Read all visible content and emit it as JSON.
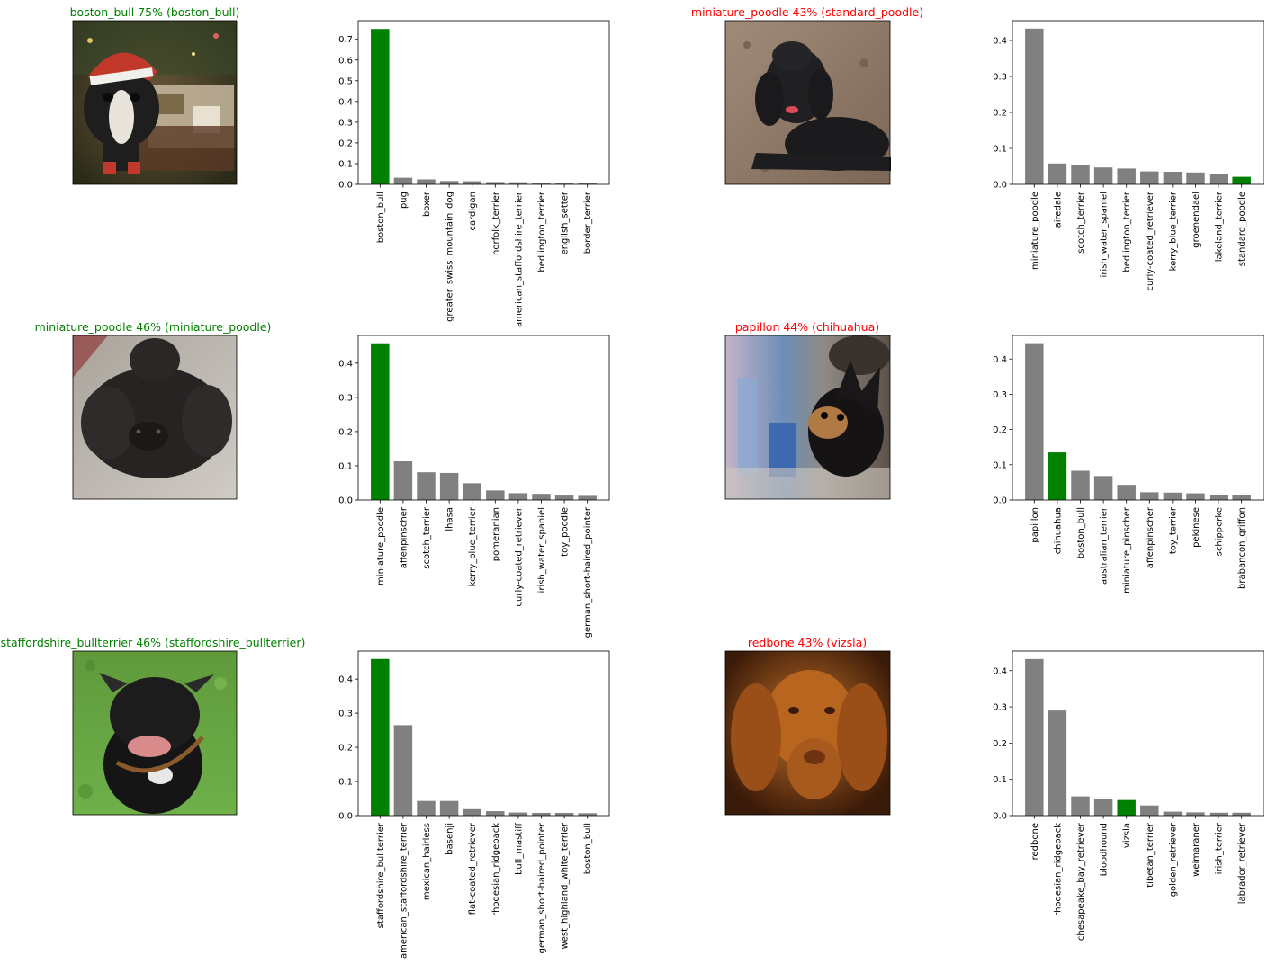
{
  "colors": {
    "correct": "#008000",
    "wrong": "#ff0000",
    "bar_default": "#808080",
    "bar_true": "#008000",
    "axis": "#000000"
  },
  "panels": [
    {
      "title": "boston_bull 75% (boston_bull)",
      "title_color": "correct",
      "image": "boston-terrier-in-santa-hat-photo",
      "chart_data": {
        "type": "bar",
        "categories": [
          "boston_bull",
          "pug",
          "boxer",
          "greater_swiss_mountain_dog",
          "cardigan",
          "norfolk_terrier",
          "american_staffordshire_terrier",
          "bedlington_terrier",
          "english_setter",
          "border_terrier"
        ],
        "values": [
          0.75,
          0.032,
          0.024,
          0.016,
          0.015,
          0.011,
          0.01,
          0.008,
          0.008,
          0.007
        ],
        "highlight_index": 0,
        "yticks": [
          0.0,
          0.1,
          0.2,
          0.3,
          0.4,
          0.5,
          0.6,
          0.7
        ],
        "ylim": [
          0,
          0.79
        ],
        "grid": false
      }
    },
    {
      "title": "miniature_poodle 43% (standard_poodle)",
      "title_color": "wrong",
      "image": "black-poodle-lying-on-ground-photo",
      "chart_data": {
        "type": "bar",
        "categories": [
          "miniature_poodle",
          "airedale",
          "scotch_terrier",
          "irish_water_spaniel",
          "bedlington_terrier",
          "curly-coated_retriever",
          "kerry_blue_terrier",
          "groenendael",
          "lakeland_terrier",
          "standard_poodle"
        ],
        "values": [
          0.433,
          0.058,
          0.055,
          0.047,
          0.044,
          0.036,
          0.035,
          0.033,
          0.028,
          0.021
        ],
        "highlight_index": 9,
        "yticks": [
          0.0,
          0.1,
          0.2,
          0.3,
          0.4
        ],
        "ylim": [
          0,
          0.455
        ],
        "grid": false
      }
    },
    {
      "title": "miniature_poodle 46% (miniature_poodle)",
      "title_color": "correct",
      "image": "curly-black-poodle-on-carpet-photo",
      "chart_data": {
        "type": "bar",
        "categories": [
          "miniature_poodle",
          "affenpinscher",
          "scotch_terrier",
          "lhasa",
          "kerry_blue_terrier",
          "pomeranian",
          "curly-coated_retriever",
          "irish_water_spaniel",
          "toy_poodle",
          "german_short-haired_pointer"
        ],
        "values": [
          0.458,
          0.113,
          0.081,
          0.079,
          0.049,
          0.028,
          0.02,
          0.018,
          0.013,
          0.012
        ],
        "highlight_index": 0,
        "yticks": [
          0.0,
          0.1,
          0.2,
          0.3,
          0.4
        ],
        "ylim": [
          0,
          0.481
        ],
        "grid": false
      }
    },
    {
      "title": "papillon 44% (chihuahua)",
      "title_color": "wrong",
      "image": "small-black-tan-dog-in-crowd-photo",
      "chart_data": {
        "type": "bar",
        "categories": [
          "papillon",
          "chihuahua",
          "boston_bull",
          "australian_terrier",
          "miniature_pinscher",
          "affenpinscher",
          "toy_terrier",
          "pekinese",
          "schipperke",
          "brabancon_griffon"
        ],
        "values": [
          0.445,
          0.135,
          0.083,
          0.068,
          0.043,
          0.022,
          0.021,
          0.019,
          0.014,
          0.014
        ],
        "highlight_index": 1,
        "yticks": [
          0.0,
          0.1,
          0.2,
          0.3,
          0.4
        ],
        "ylim": [
          0,
          0.467
        ],
        "grid": false
      }
    },
    {
      "title": "staffordshire_bullterrier 46% (staffordshire_bullterrier)",
      "title_color": "correct",
      "image": "black-staffordshire-on-grass-photo",
      "chart_data": {
        "type": "bar",
        "categories": [
          "staffordshire_bullterrier",
          "american_staffordshire_terrier",
          "mexican_hairless",
          "basenji",
          "flat-coated_retriever",
          "rhodesian_ridgeback",
          "bull_mastiff",
          "german_short-haired_pointer",
          "west_highland_white_terrier",
          "boston_bull"
        ],
        "values": [
          0.459,
          0.265,
          0.043,
          0.043,
          0.019,
          0.013,
          0.009,
          0.008,
          0.008,
          0.007
        ],
        "highlight_index": 0,
        "yticks": [
          0.0,
          0.1,
          0.2,
          0.3,
          0.4
        ],
        "ylim": [
          0,
          0.482
        ],
        "grid": false
      }
    },
    {
      "title": "redbone 43% (vizsla)",
      "title_color": "wrong",
      "image": "red-vizsla-portrait-photo",
      "chart_data": {
        "type": "bar",
        "categories": [
          "redbone",
          "rhodesian_ridgeback",
          "chesapeake_bay_retriever",
          "bloodhound",
          "vizsla",
          "tibetan_terrier",
          "golden_retriever",
          "weimaraner",
          "irish_terrier",
          "labrador_retriever"
        ],
        "values": [
          0.432,
          0.29,
          0.053,
          0.045,
          0.043,
          0.028,
          0.011,
          0.009,
          0.008,
          0.008
        ],
        "highlight_index": 4,
        "yticks": [
          0.0,
          0.1,
          0.2,
          0.3,
          0.4
        ],
        "ylim": [
          0,
          0.454
        ],
        "grid": false
      }
    }
  ]
}
